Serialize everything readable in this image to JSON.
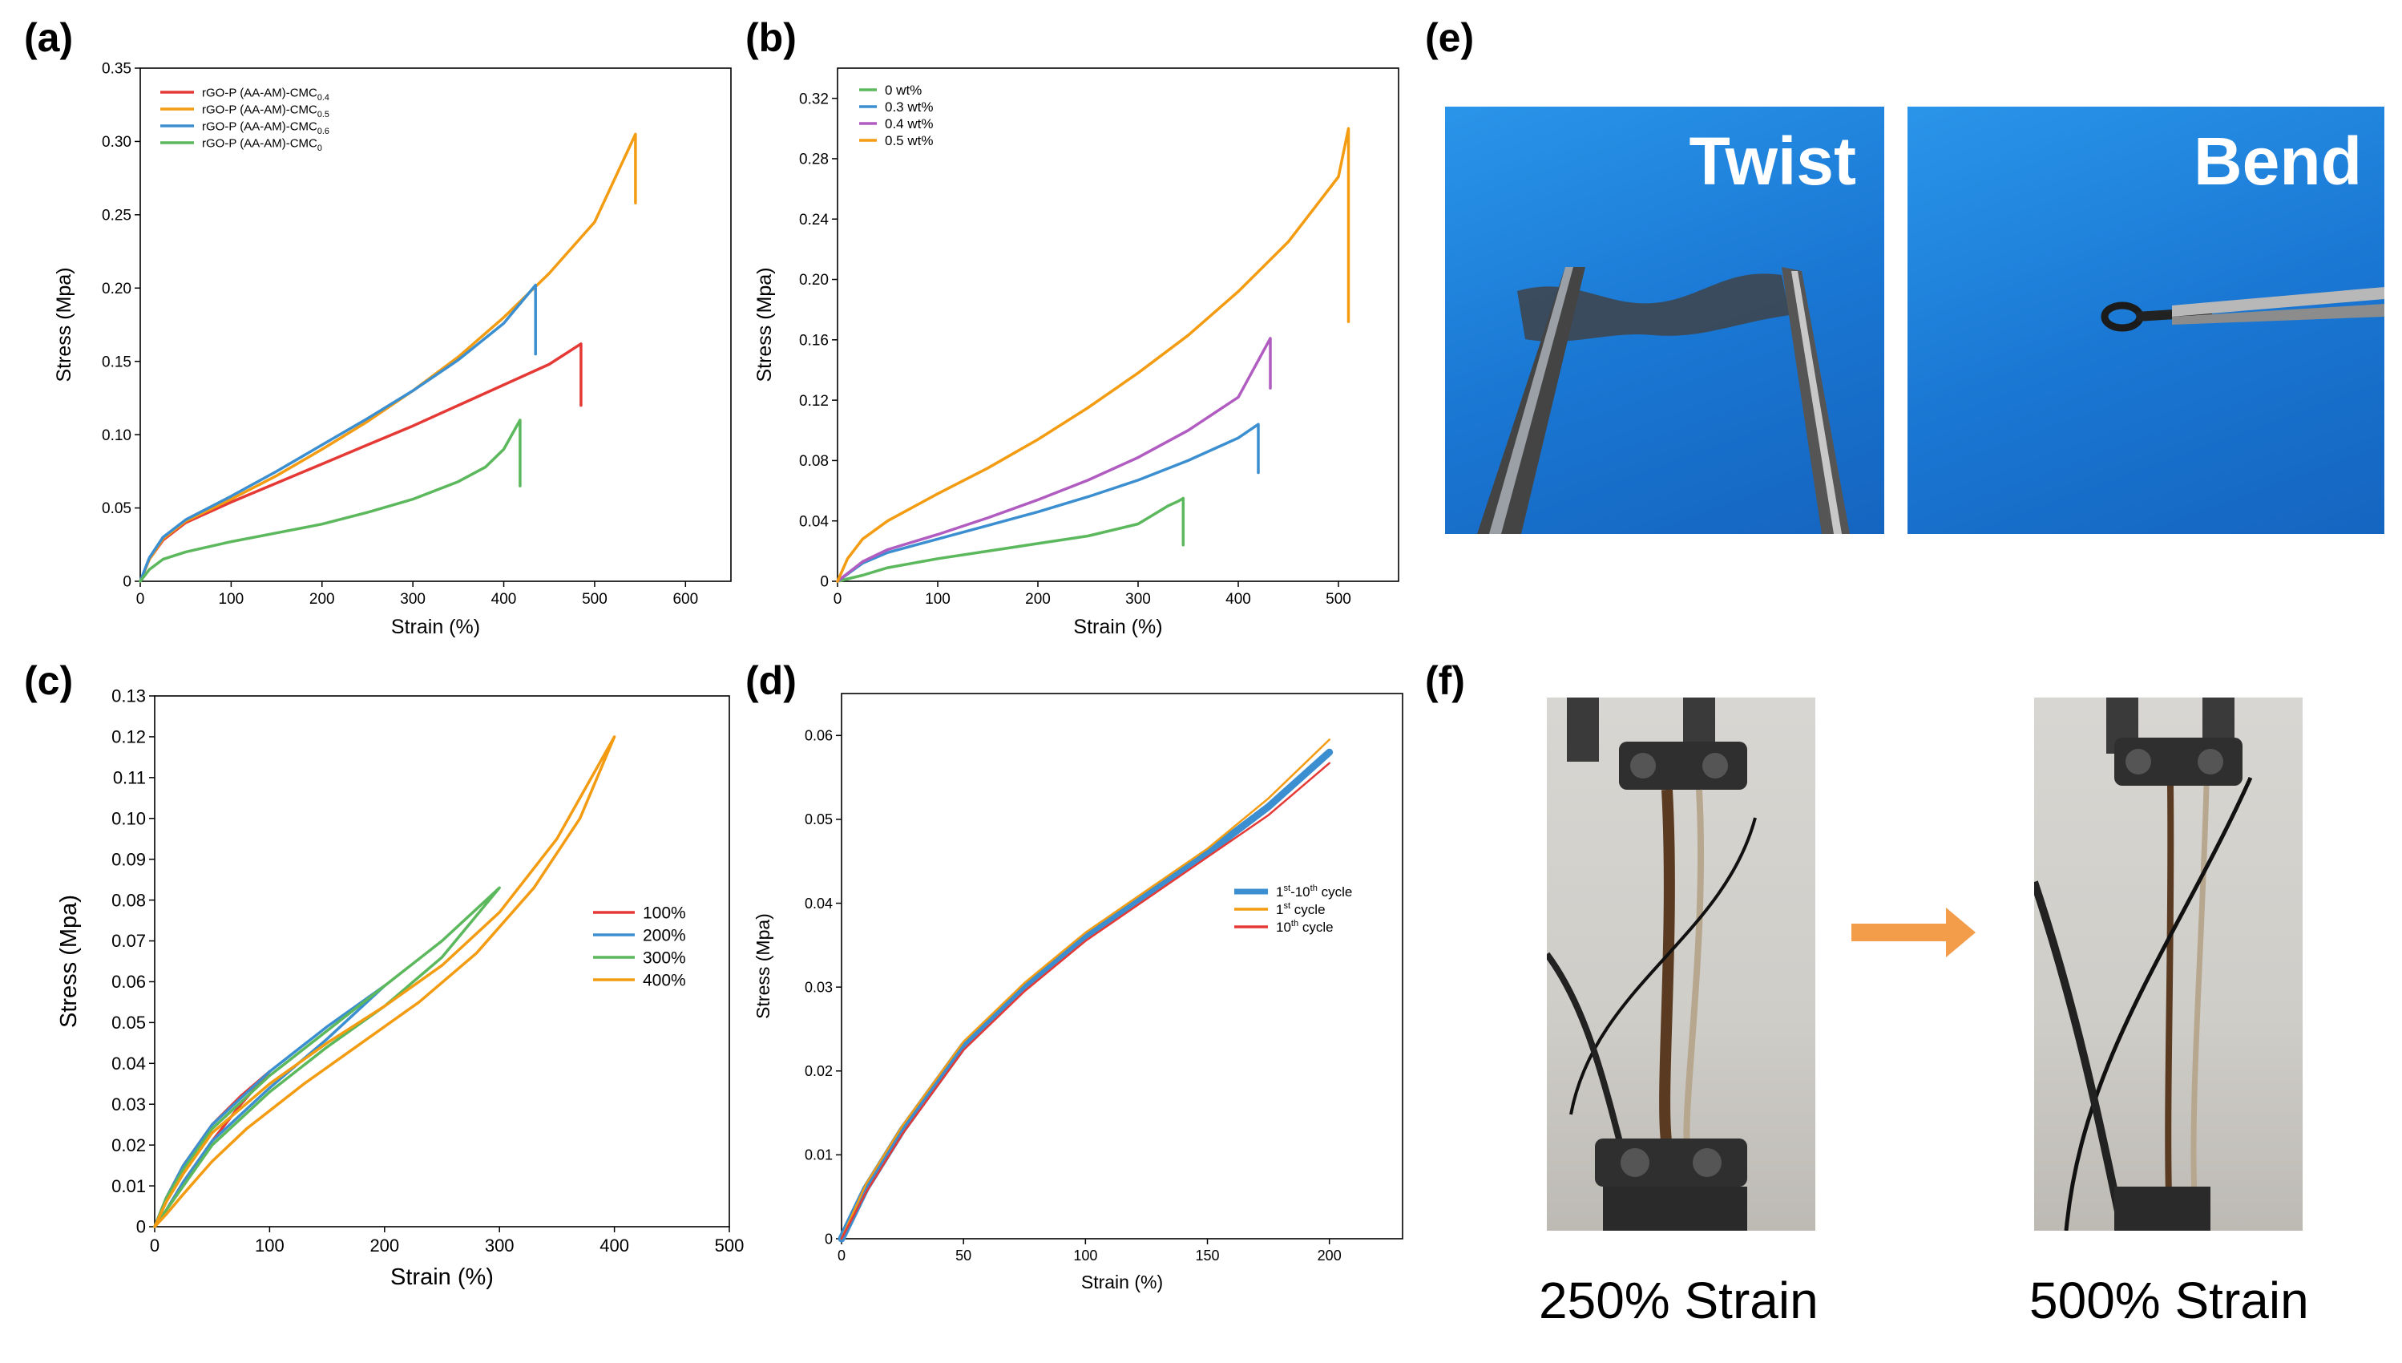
{
  "panels": {
    "a": "(a)",
    "b": "(b)",
    "c": "(c)",
    "d": "(d)",
    "e": "(e)",
    "f": "(f)"
  },
  "photos": {
    "twist": "Twist",
    "bend": "Bend",
    "caption_250": "250% Strain",
    "caption_500": "500% Strain",
    "colors": {
      "blue_bg": "#1e88e5",
      "arrow": "#f39c4a"
    }
  },
  "chart_data": [
    {
      "id": "a",
      "type": "line",
      "xlabel": "Strain (%)",
      "ylabel": "Stress (Mpa)",
      "xlim": [
        0,
        650
      ],
      "ylim": [
        0,
        0.35
      ],
      "xticks": [
        0,
        100,
        200,
        300,
        400,
        500,
        600
      ],
      "yticks": [
        0,
        0.05,
        0.1,
        0.15,
        0.2,
        0.25,
        0.3,
        0.35
      ],
      "ytick_labels": [
        "0",
        "0.05",
        "0.10",
        "0.15",
        "0.20",
        "0.25",
        "0.30",
        "0.35"
      ],
      "legend_position": "top-left",
      "series": [
        {
          "name": "rGO-P (AA-AM)-CMC",
          "sub": "0.4",
          "color": "#e53935",
          "x": [
            0,
            10,
            25,
            50,
            100,
            150,
            200,
            250,
            300,
            350,
            400,
            450,
            485,
            485
          ],
          "y": [
            0,
            0.015,
            0.028,
            0.04,
            0.054,
            0.067,
            0.08,
            0.093,
            0.106,
            0.12,
            0.134,
            0.148,
            0.162,
            0.12
          ]
        },
        {
          "name": "rGO-P (AA-AM)-CMC",
          "sub": "0.5",
          "color": "#f39c12",
          "x": [
            0,
            10,
            25,
            50,
            100,
            150,
            200,
            250,
            300,
            350,
            400,
            450,
            500,
            545,
            545
          ],
          "y": [
            0,
            0.015,
            0.029,
            0.041,
            0.056,
            0.072,
            0.09,
            0.109,
            0.13,
            0.153,
            0.18,
            0.21,
            0.245,
            0.305,
            0.258
          ]
        },
        {
          "name": "rGO-P (AA-AM)-CMC",
          "sub": "0.6",
          "color": "#3b8fd0",
          "x": [
            0,
            10,
            25,
            50,
            100,
            150,
            200,
            250,
            300,
            350,
            400,
            435,
            435
          ],
          "y": [
            0,
            0.016,
            0.03,
            0.042,
            0.058,
            0.075,
            0.093,
            0.111,
            0.13,
            0.151,
            0.176,
            0.202,
            0.155
          ]
        },
        {
          "name": "rGO-P (AA-AM)-CMC",
          "sub": "0",
          "color": "#5cb85c",
          "x": [
            0,
            10,
            25,
            50,
            100,
            150,
            200,
            250,
            300,
            350,
            380,
            400,
            418,
            418
          ],
          "y": [
            0,
            0.008,
            0.015,
            0.02,
            0.027,
            0.033,
            0.039,
            0.047,
            0.056,
            0.068,
            0.078,
            0.09,
            0.11,
            0.065
          ]
        }
      ]
    },
    {
      "id": "b",
      "type": "line",
      "xlabel": "Strain (%)",
      "ylabel": "Stress (Mpa)",
      "xlim": [
        0,
        560
      ],
      "ylim": [
        0,
        0.34
      ],
      "xticks": [
        0,
        100,
        200,
        300,
        400,
        500
      ],
      "yticks": [
        0,
        0.04,
        0.08,
        0.12,
        0.16,
        0.2,
        0.24,
        0.28,
        0.32
      ],
      "ytick_labels": [
        "0",
        "0.04",
        "0.08",
        "0.12",
        "0.16",
        "0.20",
        "0.24",
        "0.28",
        "0.32"
      ],
      "legend_position": "top-left",
      "series": [
        {
          "name": "0 wt%",
          "color": "#5cb85c",
          "x": [
            0,
            25,
            50,
            100,
            150,
            200,
            250,
            300,
            330,
            340,
            345,
            345
          ],
          "y": [
            0,
            0.004,
            0.009,
            0.015,
            0.02,
            0.025,
            0.03,
            0.038,
            0.05,
            0.053,
            0.055,
            0.024
          ]
        },
        {
          "name": "0.3 wt%",
          "color": "#3b8fd0",
          "x": [
            0,
            25,
            50,
            100,
            150,
            200,
            250,
            300,
            350,
            400,
            420,
            420
          ],
          "y": [
            0,
            0.012,
            0.019,
            0.028,
            0.037,
            0.046,
            0.056,
            0.067,
            0.08,
            0.095,
            0.104,
            0.072
          ]
        },
        {
          "name": "0.4 wt%",
          "color": "#b05cc0",
          "x": [
            0,
            25,
            50,
            100,
            150,
            200,
            250,
            300,
            350,
            400,
            432,
            432
          ],
          "y": [
            0,
            0.013,
            0.021,
            0.031,
            0.042,
            0.054,
            0.067,
            0.082,
            0.1,
            0.122,
            0.161,
            0.128
          ]
        },
        {
          "name": "0.5 wt%",
          "color": "#f39c12",
          "x": [
            0,
            10,
            25,
            50,
            100,
            150,
            200,
            250,
            300,
            350,
            400,
            450,
            500,
            510,
            510
          ],
          "y": [
            0,
            0.015,
            0.028,
            0.04,
            0.058,
            0.075,
            0.094,
            0.115,
            0.138,
            0.163,
            0.192,
            0.225,
            0.268,
            0.3,
            0.172
          ]
        }
      ]
    },
    {
      "id": "c",
      "type": "line",
      "xlabel": "Strain (%)",
      "ylabel": "Stress (Mpa)",
      "xlim": [
        0,
        500
      ],
      "ylim": [
        0,
        0.13
      ],
      "xticks": [
        0,
        100,
        200,
        300,
        400,
        500
      ],
      "yticks": [
        0,
        0.01,
        0.02,
        0.03,
        0.04,
        0.05,
        0.06,
        0.07,
        0.08,
        0.09,
        0.1,
        0.11,
        0.12,
        0.13
      ],
      "ytick_labels": [
        "0",
        "0.01",
        "0.02",
        "0.03",
        "0.04",
        "0.05",
        "0.06",
        "0.07",
        "0.08",
        "0.09",
        "0.10",
        "0.11",
        "0.12",
        "0.13"
      ],
      "legend_position": "center-right",
      "series": [
        {
          "name": "100%",
          "color": "#e53935",
          "x": [
            0,
            10,
            25,
            50,
            75,
            100,
            75,
            50,
            25,
            10,
            0
          ],
          "y": [
            0,
            0.007,
            0.015,
            0.025,
            0.032,
            0.038,
            0.03,
            0.021,
            0.011,
            0.004,
            0
          ]
        },
        {
          "name": "200%",
          "color": "#3b8fd0",
          "x": [
            0,
            10,
            25,
            50,
            100,
            150,
            200,
            150,
            100,
            50,
            25,
            10,
            0
          ],
          "y": [
            0,
            0.007,
            0.015,
            0.025,
            0.038,
            0.049,
            0.059,
            0.046,
            0.034,
            0.021,
            0.011,
            0.004,
            0
          ]
        },
        {
          "name": "300%",
          "color": "#5cb85c",
          "x": [
            0,
            10,
            25,
            50,
            100,
            150,
            200,
            250,
            300,
            250,
            200,
            150,
            100,
            50,
            25,
            10,
            0
          ],
          "y": [
            0,
            0.007,
            0.014,
            0.024,
            0.037,
            0.048,
            0.059,
            0.07,
            0.083,
            0.066,
            0.054,
            0.044,
            0.033,
            0.02,
            0.01,
            0.004,
            0
          ]
        },
        {
          "name": "400%",
          "color": "#f39c12",
          "x": [
            0,
            10,
            25,
            50,
            100,
            150,
            200,
            250,
            300,
            350,
            400,
            370,
            330,
            280,
            230,
            180,
            130,
            80,
            50,
            25,
            10,
            0
          ],
          "y": [
            0,
            0.006,
            0.013,
            0.023,
            0.035,
            0.045,
            0.054,
            0.064,
            0.077,
            0.095,
            0.12,
            0.1,
            0.083,
            0.067,
            0.055,
            0.045,
            0.035,
            0.024,
            0.016,
            0.008,
            0.003,
            0
          ]
        }
      ]
    },
    {
      "id": "d",
      "type": "line",
      "xlabel": "Strain (%)",
      "ylabel": "Stress (Mpa)",
      "xlim": [
        0,
        230
      ],
      "ylim": [
        0,
        0.065
      ],
      "xticks": [
        0,
        50,
        100,
        150,
        200
      ],
      "yticks": [
        0,
        0.01,
        0.02,
        0.03,
        0.04,
        0.05,
        0.06
      ],
      "ytick_labels": [
        "0",
        "0.01",
        "0.02",
        "0.03",
        "0.04",
        "0.05",
        "0.06"
      ],
      "legend_position": "center-right",
      "series": [
        {
          "name": "1-10 cycle",
          "sup1": "st",
          "sup2": "th",
          "color": "#3b8fd0",
          "width": 9,
          "x": [
            0,
            10,
            25,
            50,
            75,
            100,
            125,
            150,
            175,
            200
          ],
          "y": [
            0,
            0.006,
            0.013,
            0.023,
            0.03,
            0.036,
            0.041,
            0.046,
            0.0515,
            0.058
          ]
        },
        {
          "name": "1 cycle",
          "sup1": "st",
          "color": "#f39c12",
          "width": 2.5,
          "x": [
            0,
            10,
            25,
            50,
            75,
            100,
            125,
            150,
            175,
            200
          ],
          "y": [
            0,
            0.0065,
            0.0135,
            0.0235,
            0.0305,
            0.0365,
            0.0415,
            0.0465,
            0.0525,
            0.0595
          ]
        },
        {
          "name": "10 cycle",
          "sup1": "th",
          "color": "#e53935",
          "width": 2.5,
          "x": [
            0,
            10,
            25,
            50,
            75,
            100,
            125,
            150,
            175,
            200
          ],
          "y": [
            0,
            0.0055,
            0.0125,
            0.0225,
            0.0295,
            0.0355,
            0.0405,
            0.0455,
            0.0505,
            0.0567
          ]
        }
      ]
    }
  ]
}
